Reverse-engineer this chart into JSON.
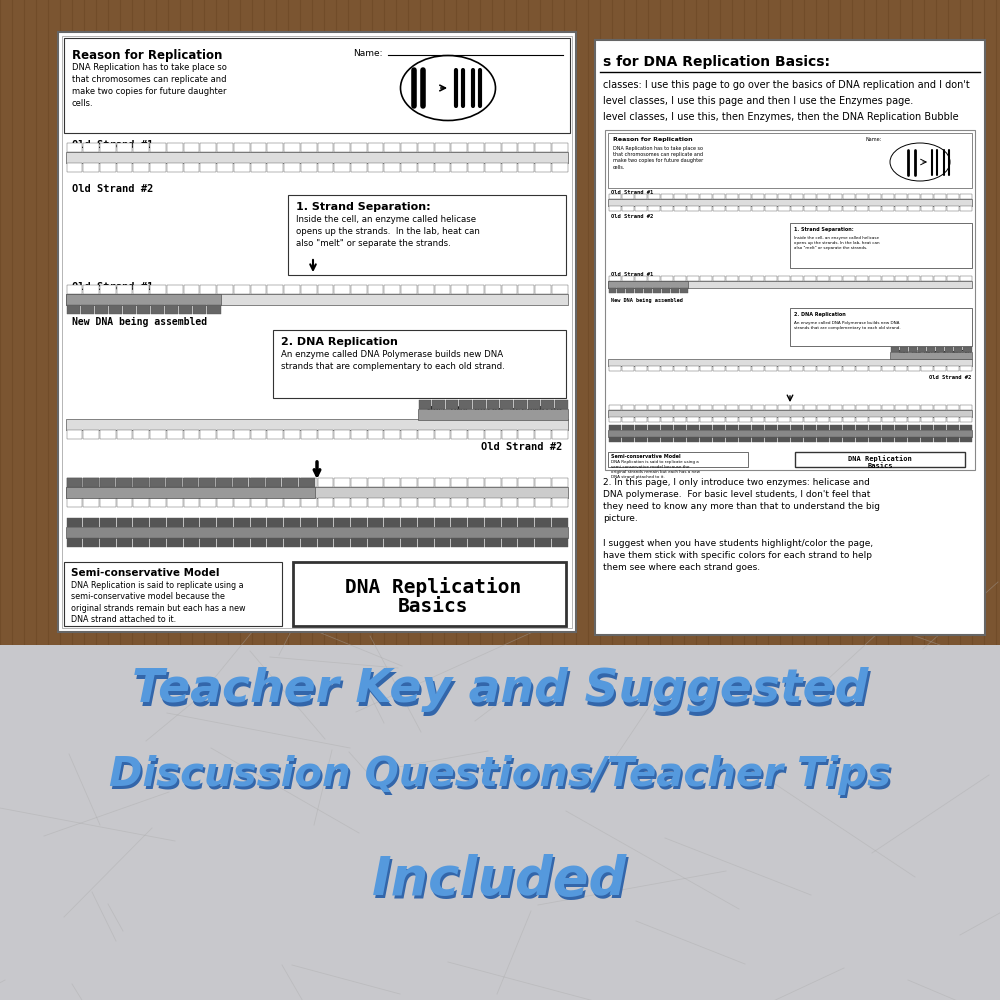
{
  "bg_color": "#7B5531",
  "bottom_bg_color": "#C8C8CC",
  "blue_text_color": "#5599DD",
  "blue_shadow_color": "#3366AA",
  "title_line1": "Teacher Key and Suggested",
  "title_line2": "Discussion Questions/Teacher Tips",
  "title_line3": "Included",
  "page1_title": "Reason for Replication",
  "page1_body": "DNA Replication has to take place so\nthat chromosomes can replicate and\nmake two copies for future daughter\ncells.",
  "page1_name_label": "Name:",
  "sep_title": "1. Strand Separation:",
  "sep_body": "Inside the cell, an enzyme called helicase\nopens up the strands.  In the lab, heat can\nalso \"melt\" or separate the strands.",
  "rep_title": "2. DNA Replication",
  "rep_body": "An enzyme called DNA Polymerase builds new DNA\nstrands that are complementary to each old strand.",
  "semi_title": "Semi-conservative Model",
  "semi_body": "DNA Replication is said to replicate using a\nsemi-conservative model because the\noriginal strands remain but each has a new\nDNA strand attached to it.",
  "dna_title_line1": "DNA Replication",
  "dna_title_line2": "Basics",
  "page2_header": "s for DNA Replication Basics:",
  "page2_text1": "classes: I use this page to go over the basics of DNA replication and I don't",
  "page2_text2": "level classes, I use this page and then I use the Enzymes page.",
  "page2_text3": "level classes, I use this, then Enzymes, then the DNA Replication Bubble",
  "page2_body": "2. In this page, I only introduce two enzymes: helicase and\nDNA polymerase.  For basic level students, I don't feel that\nthey need to know any more than that to understand the big\npicture.\n\nI suggest when you have students highlight/color the page,\nhave them stick with specific colors for each strand to help\nthem see where each strand goes."
}
